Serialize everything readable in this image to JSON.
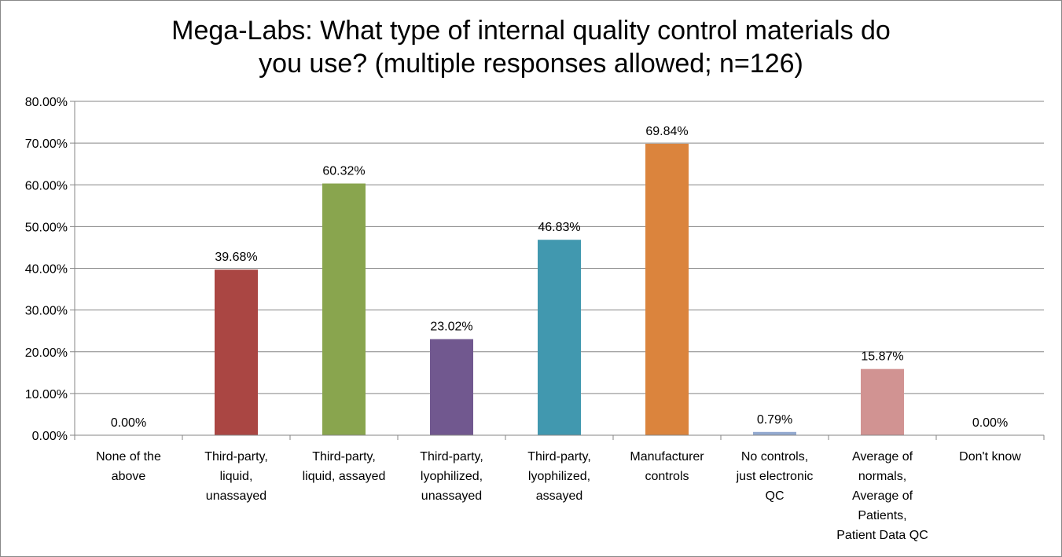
{
  "chart_data": {
    "type": "bar",
    "title_lines": [
      "Mega-Labs: What type of internal quality control materials do",
      "you use? (multiple responses allowed; n=126)"
    ],
    "categories": [
      [
        "None of the",
        "above"
      ],
      [
        "Third-party,",
        "liquid,",
        "unassayed"
      ],
      [
        "Third-party,",
        "liquid, assayed"
      ],
      [
        "Third-party,",
        "lyophilized,",
        "unassayed"
      ],
      [
        "Third-party,",
        "lyophilized,",
        "assayed"
      ],
      [
        "Manufacturer",
        "controls"
      ],
      [
        "No controls,",
        "just electronic",
        "QC"
      ],
      [
        "Average of",
        "normals,",
        "Average of",
        "Patients,",
        "Patient Data QC"
      ],
      [
        "Don't know"
      ]
    ],
    "values": [
      0.0,
      39.68,
      60.32,
      23.02,
      46.83,
      69.84,
      0.79,
      15.87,
      0.0
    ],
    "data_labels": [
      "0.00%",
      "39.68%",
      "60.32%",
      "23.02%",
      "46.83%",
      "69.84%",
      "0.79%",
      "15.87%",
      "0.00%"
    ],
    "colors": [
      "#4572A7",
      "#AA4643",
      "#89A54E",
      "#71588F",
      "#4198AF",
      "#DB843D",
      "#93A9CF",
      "#D19392",
      "#B9CD96"
    ],
    "ylim": [
      0,
      80
    ],
    "yticks": [
      "0.00%",
      "10.00%",
      "20.00%",
      "30.00%",
      "40.00%",
      "50.00%",
      "60.00%",
      "70.00%",
      "80.00%"
    ],
    "grid": true,
    "legend": "none"
  }
}
